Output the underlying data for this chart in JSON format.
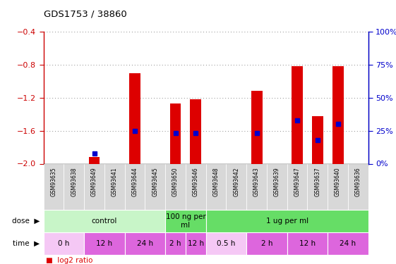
{
  "title": "GDS1753 / 38860",
  "samples": [
    "GSM93635",
    "GSM93638",
    "GSM93649",
    "GSM93641",
    "GSM93644",
    "GSM93645",
    "GSM93650",
    "GSM93646",
    "GSM93648",
    "GSM93642",
    "GSM93643",
    "GSM93639",
    "GSM93647",
    "GSM93637",
    "GSM93640",
    "GSM93636"
  ],
  "log2_ratio": [
    0,
    0,
    -1.92,
    0,
    -0.9,
    0,
    -1.27,
    -1.22,
    0,
    0,
    -1.12,
    0,
    -0.82,
    -1.42,
    -0.82,
    0
  ],
  "percentile_rank": [
    null,
    null,
    8,
    null,
    25,
    null,
    23,
    23,
    null,
    null,
    23,
    null,
    33,
    18,
    30,
    null
  ],
  "ylim_left": [
    -2.0,
    -0.4
  ],
  "ylim_right": [
    0,
    100
  ],
  "yticks_left": [
    -2.0,
    -1.6,
    -1.2,
    -0.8,
    -0.4
  ],
  "yticks_right": [
    0,
    25,
    50,
    75,
    100
  ],
  "dose_groups": [
    {
      "label": "control",
      "color": "#c8f5c8",
      "start": 0,
      "end": 6
    },
    {
      "label": "100 ng per\nml",
      "color": "#66dd66",
      "start": 6,
      "end": 8
    },
    {
      "label": "1 ug per ml",
      "color": "#66dd66",
      "start": 8,
      "end": 16
    }
  ],
  "time_groups": [
    {
      "label": "0 h",
      "color": "#f5c8f5",
      "start": 0,
      "end": 2
    },
    {
      "label": "12 h",
      "color": "#dd66dd",
      "start": 2,
      "end": 4
    },
    {
      "label": "24 h",
      "color": "#dd66dd",
      "start": 4,
      "end": 6
    },
    {
      "label": "2 h",
      "color": "#dd66dd",
      "start": 6,
      "end": 7
    },
    {
      "label": "12 h",
      "color": "#dd66dd",
      "start": 7,
      "end": 8
    },
    {
      "label": "0.5 h",
      "color": "#f5c8f5",
      "start": 8,
      "end": 10
    },
    {
      "label": "2 h",
      "color": "#dd66dd",
      "start": 10,
      "end": 12
    },
    {
      "label": "12 h",
      "color": "#dd66dd",
      "start": 12,
      "end": 14
    },
    {
      "label": "24 h",
      "color": "#dd66dd",
      "start": 14,
      "end": 16
    }
  ],
  "bar_color": "#dd0000",
  "dot_color": "#0000cc",
  "axis_color_left": "#cc0000",
  "axis_color_right": "#0000cc",
  "background_color": "#ffffff",
  "grid_color": "#888888",
  "sample_bg_color": "#d8d8d8"
}
